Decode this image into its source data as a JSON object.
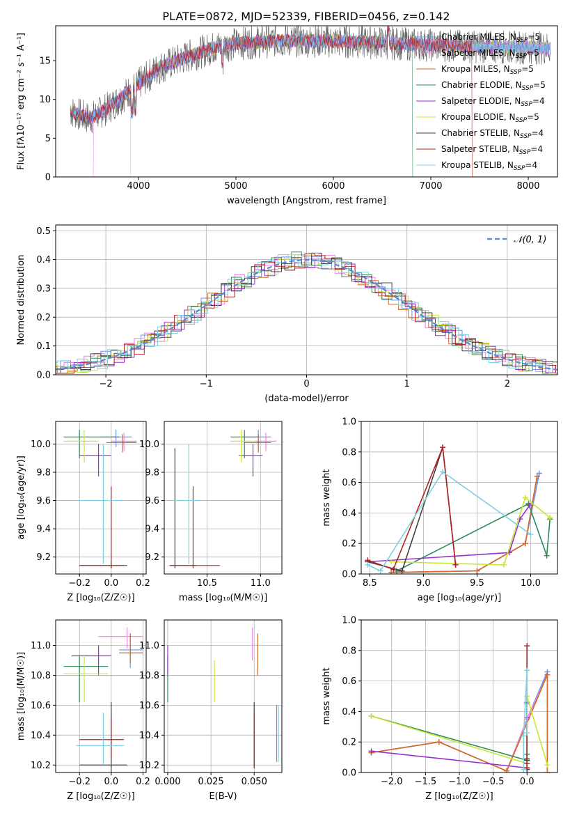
{
  "figure_title": "PLATE=0872, MJD=52339, FIBERID=0456, z=0.142",
  "colors": {
    "chab_miles": "#6495ed",
    "salp_miles": "#ee82ee",
    "krou_miles": "#d2691e",
    "chab_elodie": "#2e8b57",
    "salp_elodie": "#9932cc",
    "krou_elodie": "#c8e632",
    "chab_stelib": "#404040",
    "salp_stelib": "#b22222",
    "krou_stelib": "#7fd0e0",
    "ncurve": "#5588dd"
  },
  "chart_data": [
    {
      "type": "line",
      "panel": "spectrum",
      "xlabel": "wavelength [Angstrom, rest frame]",
      "ylabel": "Flux [fλ10⁻¹⁷ erg cm⁻² s⁻¹ A⁻¹]",
      "xlim": [
        3150,
        8300
      ],
      "ylim": [
        0,
        19.5
      ],
      "xticks": [
        4000,
        5000,
        6000,
        7000,
        8000
      ],
      "yticks": [
        0,
        5,
        10,
        15
      ],
      "legend_position": "right",
      "continuum": {
        "x": [
          3300,
          3500,
          3700,
          3900,
          4000,
          4200,
          4500,
          4800,
          5000,
          5200,
          5500,
          6000,
          6500,
          7000,
          7500,
          8000,
          8300
        ],
        "y": [
          8.5,
          7.5,
          9.0,
          11.0,
          12.0,
          14.0,
          15.5,
          16.8,
          17.2,
          17.4,
          17.6,
          17.5,
          17.3,
          17.0,
          16.8,
          16.7,
          16.6
        ]
      },
      "drops": [
        {
          "series": "Salpeter MILES",
          "x": 3540
        },
        {
          "series": "Kroupa ELODIE",
          "x": 3920
        },
        {
          "series": "Chabrier ELODIE",
          "x": 6810
        },
        {
          "series": "Salpeter STELIB",
          "x": 7420
        }
      ],
      "series": [
        {
          "name": "Chabrier MILES, N",
          "sub": "SSP",
          "suffix": "=5",
          "key": "chab_miles"
        },
        {
          "name": "Salpeter MILES, N",
          "sub": "SSP",
          "suffix": "=5",
          "key": "salp_miles"
        },
        {
          "name": "Kroupa MILES, N",
          "sub": "SSP",
          "suffix": "=5",
          "key": "krou_miles"
        },
        {
          "name": "Chabrier ELODIE, N",
          "sub": "SSP",
          "suffix": "=5",
          "key": "chab_elodie"
        },
        {
          "name": "Salpeter ELODIE, N",
          "sub": "SSP",
          "suffix": "=4",
          "key": "salp_elodie"
        },
        {
          "name": "Kroupa ELODIE, N",
          "sub": "SSP",
          "suffix": "=5",
          "key": "krou_elodie"
        },
        {
          "name": "Chabrier STELIB, N",
          "sub": "SSP",
          "suffix": "=4",
          "key": "chab_stelib"
        },
        {
          "name": "Salpeter STELIB, N",
          "sub": "SSP",
          "suffix": "=4",
          "key": "salp_stelib"
        },
        {
          "name": "Kroupa STELIB, N",
          "sub": "SSP",
          "suffix": "=4",
          "key": "krou_stelib"
        }
      ]
    },
    {
      "type": "area",
      "panel": "residual-histogram",
      "xlabel": "(data-model)/error",
      "ylabel": "Normed distribution",
      "xlim": [
        -2.5,
        2.5
      ],
      "ylim": [
        0,
        0.52
      ],
      "xticks": [
        -2,
        -1,
        0,
        1,
        2
      ],
      "yticks": [
        0.0,
        0.1,
        0.2,
        0.3,
        0.4,
        0.5
      ],
      "legend": "𝒩(0, 1)",
      "legend_position": "top-right",
      "grid": true
    },
    {
      "type": "scatter",
      "panel": "age-vs-Z",
      "xlabel": "Z [log₁₀(Z/Z☉)]",
      "ylabel": "age  [log₁₀(age/yr)]",
      "xlim": [
        -0.35,
        0.22
      ],
      "ylim": [
        9.08,
        10.16
      ],
      "xticks": [
        -0.2,
        0.0,
        0.2
      ],
      "yticks": [
        9.2,
        9.4,
        9.6,
        9.8,
        10.0
      ],
      "grid": true,
      "points": [
        {
          "key": "chab_miles",
          "x": 0.03,
          "y": 10.05,
          "xe": [
            -0.07,
            0.13
          ],
          "ye": [
            9.98,
            10.1
          ]
        },
        {
          "key": "salp_miles",
          "x": 0.08,
          "y": 10.02,
          "xe": [
            0.0,
            0.16
          ],
          "ye": [
            9.95,
            10.08
          ]
        },
        {
          "key": "krou_miles",
          "x": 0.07,
          "y": 10.01,
          "xe": [
            -0.03,
            0.16
          ],
          "ye": [
            9.94,
            10.07
          ]
        },
        {
          "key": "chab_elodie",
          "x": -0.2,
          "y": 10.05,
          "xe": [
            -0.3,
            0.05
          ],
          "ye": [
            9.9,
            10.1
          ]
        },
        {
          "key": "salp_elodie",
          "x": -0.08,
          "y": 9.92,
          "xe": [
            -0.2,
            0.0
          ],
          "ye": [
            9.77,
            10.0
          ]
        },
        {
          "key": "krou_elodie",
          "x": -0.17,
          "y": 10.02,
          "xe": [
            -0.3,
            -0.08
          ],
          "ye": [
            9.87,
            10.1
          ]
        },
        {
          "key": "chab_stelib",
          "x": 0.0,
          "y": 9.14,
          "xe": [
            -0.2,
            0.1
          ],
          "ye": [
            9.12,
            9.17
          ]
        },
        {
          "key": "salp_stelib",
          "x": 0.0,
          "y": 9.14,
          "xe": [
            -0.2,
            0.08
          ],
          "ye": [
            9.12,
            9.7
          ]
        },
        {
          "key": "krou_stelib",
          "x": -0.05,
          "y": 9.6,
          "xe": [
            -0.22,
            0.08
          ],
          "ye": [
            9.15,
            10.0
          ]
        }
      ]
    },
    {
      "type": "scatter",
      "panel": "age-vs-mass",
      "xlabel": "mass [log₁₀(M/M☉)]",
      "ylabel": "",
      "xlim": [
        10.1,
        11.2
      ],
      "ylim": [
        9.08,
        10.16
      ],
      "xticks": [
        10.5,
        11.0
      ],
      "yticks": [
        9.2,
        9.4,
        9.6,
        9.8,
        10.0
      ],
      "grid": true,
      "points": [
        {
          "key": "chab_miles",
          "x": 10.98,
          "y": 10.05,
          "xe": [
            10.85,
            11.1
          ],
          "ye": [
            9.98,
            10.1
          ]
        },
        {
          "key": "salp_miles",
          "x": 11.05,
          "y": 10.02,
          "xe": [
            10.95,
            11.15
          ],
          "ye": [
            9.95,
            10.08
          ]
        },
        {
          "key": "krou_miles",
          "x": 10.98,
          "y": 10.01,
          "xe": [
            10.85,
            11.1
          ],
          "ye": [
            9.94,
            10.07
          ]
        },
        {
          "key": "chab_elodie",
          "x": 10.85,
          "y": 10.05,
          "xe": [
            10.72,
            10.98
          ],
          "ye": [
            9.9,
            10.1
          ]
        },
        {
          "key": "salp_elodie",
          "x": 10.93,
          "y": 9.92,
          "xe": [
            10.8,
            11.02
          ],
          "ye": [
            9.77,
            10.0
          ]
        },
        {
          "key": "krou_elodie",
          "x": 10.82,
          "y": 10.02,
          "xe": [
            10.72,
            10.95
          ],
          "ye": [
            9.87,
            10.1
          ]
        },
        {
          "key": "chab_stelib",
          "x": 10.2,
          "y": 9.14,
          "xe": [
            10.15,
            10.4
          ],
          "ye": [
            9.12,
            9.97
          ]
        },
        {
          "key": "salp_stelib",
          "x": 10.37,
          "y": 9.14,
          "xe": [
            10.15,
            10.62
          ],
          "ye": [
            9.12,
            9.7
          ]
        },
        {
          "key": "krou_stelib",
          "x": 10.33,
          "y": 9.6,
          "xe": [
            10.2,
            10.45
          ],
          "ye": [
            9.15,
            10.0
          ]
        }
      ]
    },
    {
      "type": "line",
      "panel": "massweight-vs-age",
      "xlabel": "age  [log₁₀(age/yr)]",
      "ylabel": "mass weight",
      "xlim": [
        8.42,
        10.25
      ],
      "ylim": [
        0,
        1.0
      ],
      "xticks": [
        8.5,
        9.0,
        9.5,
        10.0
      ],
      "yticks": [
        0.0,
        0.2,
        0.4,
        0.6,
        0.8,
        1.0
      ],
      "grid": true,
      "series": [
        {
          "key": "chab_miles",
          "x": [
            8.7,
            9.5,
            9.95,
            10.08
          ],
          "y": [
            0.01,
            0.02,
            0.2,
            0.66
          ]
        },
        {
          "key": "salp_miles",
          "x": [
            8.7,
            9.5,
            9.95,
            10.06
          ],
          "y": [
            0.01,
            0.02,
            0.2,
            0.64
          ]
        },
        {
          "key": "krou_miles",
          "x": [
            8.7,
            9.5,
            9.95,
            10.06
          ],
          "y": [
            0.01,
            0.02,
            0.2,
            0.64
          ]
        },
        {
          "key": "chab_elodie",
          "x": [
            8.75,
            9.98,
            10.15,
            10.18
          ],
          "y": [
            0.02,
            0.46,
            0.12,
            0.36
          ]
        },
        {
          "key": "salp_elodie",
          "x": [
            8.48,
            9.8,
            9.9,
            9.99
          ],
          "y": [
            0.08,
            0.14,
            0.36,
            0.45
          ]
        },
        {
          "key": "krou_elodie",
          "x": [
            8.7,
            9.75,
            9.95,
            10.18
          ],
          "y": [
            0.08,
            0.06,
            0.5,
            0.37
          ]
        },
        {
          "key": "chab_stelib",
          "x": [
            8.48,
            8.8,
            9.18,
            9.3
          ],
          "y": [
            0.08,
            0.02,
            0.83,
            0.06
          ]
        },
        {
          "key": "salp_stelib",
          "x": [
            8.48,
            8.72,
            9.18,
            9.3
          ],
          "y": [
            0.09,
            0.03,
            0.83,
            0.06
          ]
        },
        {
          "key": "krou_stelib",
          "x": [
            8.48,
            8.6,
            9.18,
            10.0
          ],
          "y": [
            0.06,
            0.02,
            0.67,
            0.26
          ]
        }
      ]
    },
    {
      "type": "scatter",
      "panel": "mass-vs-Z",
      "xlabel": "Z [log₁₀(Z/Z☉)]",
      "ylabel": "mass [log₁₀(M/M☉)]",
      "xlim": [
        -0.35,
        0.22
      ],
      "ylim": [
        10.15,
        11.17
      ],
      "xticks": [
        -0.2,
        0.0,
        0.2
      ],
      "yticks": [
        10.2,
        10.4,
        10.6,
        10.8,
        11.0
      ],
      "grid": true,
      "points": [
        {
          "key": "chab_miles",
          "x": 0.12,
          "y": 10.97,
          "xe": [
            0.05,
            0.2
          ],
          "ye": [
            10.85,
            11.08
          ]
        },
        {
          "key": "salp_miles",
          "x": 0.1,
          "y": 11.06,
          "xe": [
            -0.08,
            0.2
          ],
          "ye": [
            10.98,
            11.12
          ]
        },
        {
          "key": "krou_miles",
          "x": 0.12,
          "y": 10.95,
          "xe": [
            0.05,
            0.2
          ],
          "ye": [
            10.88,
            11.08
          ]
        },
        {
          "key": "chab_elodie",
          "x": -0.2,
          "y": 10.86,
          "xe": [
            -0.3,
            -0.02
          ],
          "ye": [
            10.62,
            10.93
          ]
        },
        {
          "key": "salp_elodie",
          "x": -0.08,
          "y": 10.93,
          "xe": [
            -0.25,
            0.0
          ],
          "ye": [
            10.8,
            11.0
          ]
        },
        {
          "key": "krou_elodie",
          "x": -0.17,
          "y": 10.81,
          "xe": [
            -0.3,
            -0.02
          ],
          "ye": [
            10.62,
            10.93
          ]
        },
        {
          "key": "chab_stelib",
          "x": 0.0,
          "y": 10.2,
          "xe": [
            -0.2,
            0.1
          ],
          "ye": [
            10.15,
            10.62
          ]
        },
        {
          "key": "salp_stelib",
          "x": 0.0,
          "y": 10.37,
          "xe": [
            -0.2,
            0.08
          ],
          "ye": [
            10.24,
            10.52
          ]
        },
        {
          "key": "krou_stelib",
          "x": -0.05,
          "y": 10.33,
          "xe": [
            -0.22,
            0.08
          ],
          "ye": [
            10.2,
            10.55
          ]
        }
      ]
    },
    {
      "type": "scatter",
      "panel": "mass-vs-EBV",
      "xlabel": "E(B-V)",
      "ylabel": "",
      "xlim": [
        -0.002,
        0.066
      ],
      "ylim": [
        10.15,
        11.17
      ],
      "xticks": [
        0.0,
        0.025,
        0.05
      ],
      "yticks": [
        10.2,
        10.4,
        10.6,
        10.8,
        11.0
      ],
      "grid": true,
      "points": [
        {
          "key": "chab_miles",
          "x": 0.063,
          "y": 10.4,
          "ye": [
            10.22,
            10.6
          ]
        },
        {
          "key": "salp_miles",
          "x": 0.049,
          "y": 11.0,
          "ye": [
            10.9,
            11.12
          ]
        },
        {
          "key": "krou_miles",
          "x": 0.052,
          "y": 10.95,
          "ye": [
            10.8,
            11.08
          ]
        },
        {
          "key": "chab_elodie",
          "x": 0.0,
          "y": 10.86,
          "ye": [
            10.62,
            10.93
          ]
        },
        {
          "key": "salp_elodie",
          "x": 0.0,
          "y": 10.93,
          "ye": [
            10.8,
            11.0
          ]
        },
        {
          "key": "krou_elodie",
          "x": 0.027,
          "y": 10.81,
          "ye": [
            10.62,
            10.9
          ]
        },
        {
          "key": "chab_stelib",
          "x": 0.05,
          "y": 10.4,
          "ye": [
            10.18,
            10.62
          ]
        },
        {
          "key": "salp_stelib",
          "x": 0.05,
          "y": 10.37,
          "ye": [
            10.18,
            10.55
          ]
        },
        {
          "key": "krou_stelib",
          "x": 0.064,
          "y": 10.4,
          "ye": [
            10.22,
            10.6
          ]
        }
      ]
    },
    {
      "type": "line",
      "panel": "massweight-vs-Z",
      "xlabel": "Z [log₁₀(Z/Z☉)]",
      "ylabel": "mass weight",
      "xlim": [
        -2.45,
        0.45
      ],
      "ylim": [
        0,
        1.0
      ],
      "xticks": [
        -2.0,
        -1.5,
        -1.0,
        -0.5,
        0.0
      ],
      "yticks": [
        0.0,
        0.2,
        0.4,
        0.6,
        0.8,
        1.0
      ],
      "grid": true,
      "series": [
        {
          "key": "chab_miles",
          "x": [
            -2.3,
            -1.3,
            -0.3,
            0.0,
            0.3
          ],
          "y": [
            0.13,
            0.2,
            0.01,
            0.35,
            0.66
          ]
        },
        {
          "key": "salp_miles",
          "x": [
            -2.3,
            -1.3,
            -0.3,
            0.0,
            0.3
          ],
          "y": [
            0.13,
            0.2,
            0.01,
            0.35,
            0.64
          ]
        },
        {
          "key": "krou_miles",
          "x": [
            -2.3,
            -1.3,
            -0.3,
            0.3,
            0.3
          ],
          "y": [
            0.13,
            0.2,
            0.01,
            0.64,
            0.0
          ]
        },
        {
          "key": "chab_elodie",
          "x": [
            -2.3,
            0.0,
            0.0,
            0.0
          ],
          "y": [
            0.37,
            0.08,
            0.12,
            0.46
          ]
        },
        {
          "key": "salp_elodie",
          "x": [
            -2.3,
            0.0,
            0.0,
            0.0
          ],
          "y": [
            0.14,
            0.03,
            0.36,
            0.45
          ]
        },
        {
          "key": "krou_elodie",
          "x": [
            -2.3,
            0.0,
            0.0,
            0.3
          ],
          "y": [
            0.37,
            0.06,
            0.5,
            0.05
          ]
        },
        {
          "key": "chab_stelib",
          "x": [
            0.0,
            0.0,
            0.0,
            0.0
          ],
          "y": [
            0.02,
            0.08,
            0.83,
            0.06
          ]
        },
        {
          "key": "salp_stelib",
          "x": [
            0.0,
            0.0,
            0.0,
            0.0
          ],
          "y": [
            0.03,
            0.09,
            0.83,
            0.06
          ]
        },
        {
          "key": "krou_stelib",
          "x": [
            -0.05,
            -0.05,
            0.0,
            0.0
          ],
          "y": [
            0.02,
            0.24,
            0.67,
            0.26
          ]
        }
      ]
    }
  ]
}
